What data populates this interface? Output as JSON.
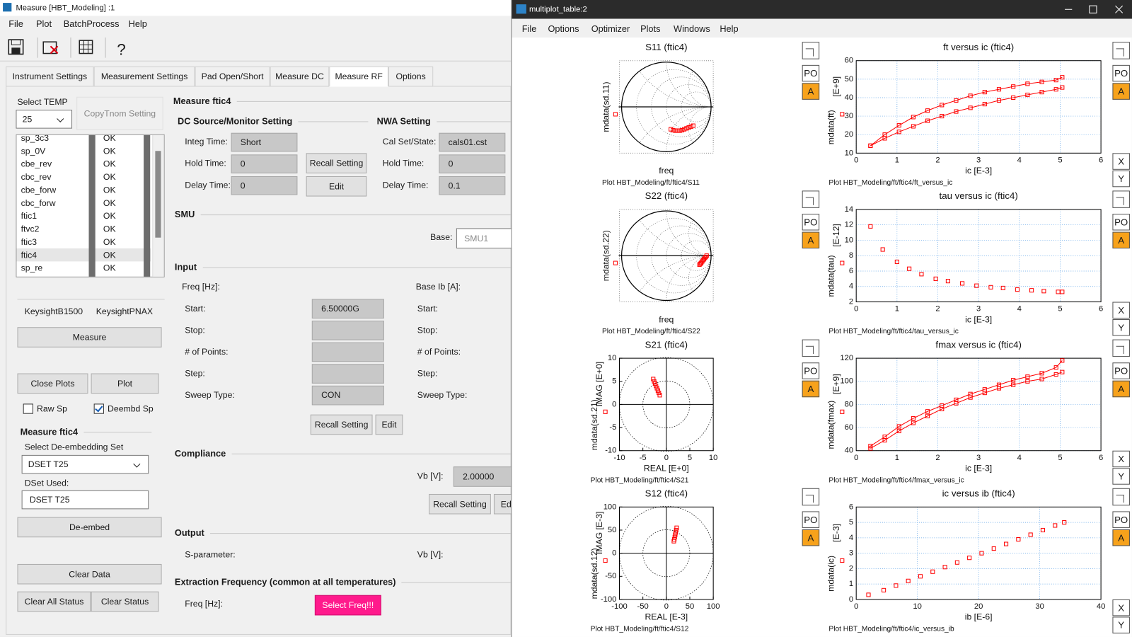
{
  "left_window": {
    "title": "Measure [HBT_Modeling] :1",
    "menu": [
      "File",
      "Plot",
      "BatchProcess",
      "Help"
    ],
    "help_icon": "?",
    "tabs": [
      "Instrument Settings",
      "Measurement Settings",
      "Pad Open/Short",
      "Measure DC",
      "Measure RF",
      "Options"
    ],
    "active_tab": 4,
    "sidebar": {
      "select_temp": "Select TEMP",
      "temp": "25",
      "copy_tnom": "CopyTnom Setting",
      "setups": [
        {
          "name": "sp_3c3",
          "status": "OK"
        },
        {
          "name": "sp_0V",
          "status": "OK"
        },
        {
          "name": "cbe_rev",
          "status": "OK"
        },
        {
          "name": "cbc_rev",
          "status": "OK"
        },
        {
          "name": "cbe_forw",
          "status": "OK"
        },
        {
          "name": "cbc_forw",
          "status": "OK"
        },
        {
          "name": "ftic1",
          "status": "OK"
        },
        {
          "name": "ftvc2",
          "status": "OK"
        },
        {
          "name": "ftic3",
          "status": "OK"
        },
        {
          "name": "ftic4",
          "status": "OK"
        },
        {
          "name": "sp_re",
          "status": "OK"
        }
      ],
      "selected_setup": 9,
      "instruments": [
        "KeysightB1500",
        "KeysightPNAX"
      ],
      "measure": "Measure",
      "close_plots": "Close Plots",
      "plot": "Plot",
      "raw_sp": "Raw Sp",
      "deembd_sp": "Deembd Sp",
      "raw_sp_checked": false,
      "deembd_sp_checked": true,
      "section": "Measure ftic4",
      "select_deembed": "Select De-embedding Set",
      "deembed_set": "DSET T25",
      "dset_used": "DSet Used:",
      "dset_used_value": "DSET T25",
      "deembed": "De-embed",
      "clear_data": "Clear Data",
      "clear_all_status": "Clear All Status",
      "clear_status": "Clear Status"
    },
    "main": {
      "title": "Measure ftic4",
      "dc_header": "DC Source/Monitor Setting",
      "nwa_header": "NWA Setting",
      "integ_time_label": "Integ Time:",
      "integ_time": "Short",
      "hold_time_label": "Hold Time:",
      "hold_time": "0",
      "delay_time_label": "Delay Time:",
      "delay_time": "0",
      "recall": "Recall Setting",
      "edit": "Edit",
      "cal_set_label": "Cal Set/State:",
      "cal_set": "cals01.cst",
      "nwa_hold_label": "Hold Time:",
      "nwa_hold": "0",
      "nwa_delay_label": "Delay Time:",
      "nwa_delay": "0.1",
      "smu": "SMU",
      "base_label": "Base:",
      "base": "SMU1",
      "input": "Input",
      "freq_label": "Freq [Hz]:",
      "base_ib_label": "Base Ib [A]:",
      "sweep_labels": [
        "Start:",
        "Stop:",
        "# of Points:",
        "Step:",
        "Sweep Type:"
      ],
      "start": "6.50000G",
      "sweep_type": "CON",
      "input_recall": "Recall Setting",
      "input_edit": "Edit",
      "compliance": "Compliance",
      "vb_label": "Vb [V]:",
      "vb": "2.00000",
      "compliance_recall": "Recall Setting",
      "compliance_edit": "Edit",
      "output": "Output",
      "sparam_label": "S-parameter:",
      "output_vb_label": "Vb [V]:",
      "extraction": "Extraction Frequency (common at all temperatures)",
      "extraction_freq_label": "Freq [Hz]:",
      "select_freq": "Select Freq!!!"
    }
  },
  "multiplot_window": {
    "title": "multiplot_table:2",
    "menu": [
      "File",
      "Options",
      "Optimizer",
      "Plots",
      "Windows",
      "Help"
    ],
    "side_buttons": {
      "po": "PO",
      "a": "A",
      "x": "X",
      "y": "Y"
    },
    "plots": [
      {
        "type": "smith",
        "title": "S11 (ftic4)",
        "ylabel": "mdata(sd.11)",
        "xlabel": "freq",
        "caption": "Plot HBT_Modeling/ft/ftic4/S11",
        "color": "#ff0000",
        "x": [
          0.1,
          0.15,
          0.2,
          0.25,
          0.3,
          0.35,
          0.4,
          0.45,
          0.5,
          0.55,
          0.6
        ],
        "series": [
          {
            "values": [
              -0.5,
              -0.52,
              -0.53,
              -0.53,
              -0.53,
              -0.52,
              -0.5,
              -0.48,
              -0.46,
              -0.44,
              -0.42
            ]
          }
        ]
      },
      {
        "type": "xy",
        "title": "ft versus ic (ftic4)",
        "ylabel": "mdata(ft)",
        "yunit": "[E+9]",
        "xlabel": "ic  [E-3]",
        "caption": "Plot HBT_Modeling/ft/ftic4/ft_versus_ic",
        "color": "#ff0000",
        "lines": true,
        "grid": true,
        "xlim": [
          0,
          6
        ],
        "xticks": [
          0,
          1,
          2,
          3,
          4,
          5,
          6
        ],
        "ylim": [
          10,
          60
        ],
        "yticks": [
          10,
          20,
          30,
          40,
          50,
          60
        ],
        "x": [
          0.35,
          0.7,
          1.05,
          1.4,
          1.75,
          2.1,
          2.45,
          2.8,
          3.15,
          3.5,
          3.85,
          4.2,
          4.55,
          4.9,
          5.05
        ],
        "series": [
          {
            "values": [
              14,
              20,
              25,
              29.5,
              33,
              36,
              38.5,
              41,
              43,
              44.5,
              46,
              47.5,
              48.5,
              49.5,
              51
            ]
          },
          {
            "values": [
              14,
              18,
              21.5,
              24.5,
              27.5,
              30,
              32.5,
              34.5,
              36.5,
              38.5,
              40,
              41.5,
              43,
              44.5,
              45.5
            ]
          }
        ]
      },
      {
        "type": "smith",
        "title": "S22 (ftic4)",
        "ylabel": "mdata(sd.22)",
        "xlabel": "freq",
        "caption": "Plot HBT_Modeling/ft/ftic4/S22",
        "color": "#ff0000",
        "x": [
          0.74,
          0.76,
          0.78,
          0.8,
          0.82,
          0.84,
          0.86,
          0.88,
          0.9
        ],
        "series": [
          {
            "values": [
              -0.2,
              -0.18,
              -0.16,
              -0.13,
              -0.1,
              -0.08,
              -0.05,
              -0.03,
              0
            ]
          }
        ]
      },
      {
        "type": "xy",
        "title": "tau versus ic (ftic4)",
        "ylabel": "mdata(tau)",
        "yunit": "[E-12]",
        "xlabel": "ic  [E-3]",
        "caption": "Plot HBT_Modeling/ft/ftic4/tau_versus_ic",
        "color": "#ff0000",
        "lines": false,
        "grid": true,
        "xlim": [
          0,
          6
        ],
        "xticks": [
          0,
          1,
          2,
          3,
          4,
          5,
          6
        ],
        "ylim": [
          2,
          14
        ],
        "yticks": [
          2,
          4,
          6,
          8,
          10,
          12,
          14
        ],
        "x": [
          0.35,
          0.65,
          1.0,
          1.3,
          1.6,
          1.95,
          2.25,
          2.6,
          2.95,
          3.3,
          3.6,
          3.95,
          4.3,
          4.6,
          4.95,
          5.05
        ],
        "series": [
          {
            "values": [
              11.8,
              8.8,
              7.2,
              6.3,
              5.6,
              5.0,
              4.7,
              4.4,
              4.1,
              3.9,
              3.8,
              3.6,
              3.5,
              3.4,
              3.3,
              3.3
            ]
          }
        ]
      },
      {
        "type": "polar",
        "title": "S21 (ftic4)",
        "ylabel": "mdata(sd.21)",
        "yunit": "IMAG [E+0]",
        "xlabel": "REAL [E+0]",
        "caption": "Plot HBT_Modeling/ft/ftic4/S21",
        "color": "#ff0000",
        "xlim": [
          -10,
          10
        ],
        "xticks": [
          -10,
          -5,
          0,
          5,
          10
        ],
        "ylim": [
          -10,
          10
        ],
        "yticks": [
          -10,
          -5,
          0,
          5,
          10
        ],
        "x": [
          -2.8,
          -2.6,
          -2.4,
          -2.2,
          -2.0,
          -1.8,
          -1.6,
          -1.4
        ],
        "series": [
          {
            "values": [
              5.5,
              5.0,
              4.5,
              4.0,
              3.5,
              3.0,
              2.5,
              2.0
            ]
          }
        ]
      },
      {
        "type": "xy",
        "title": "fmax versus ic (ftic4)",
        "ylabel": "mdata(fmax)",
        "yunit": "[E+9]",
        "xlabel": "ic  [E-3]",
        "caption": "Plot HBT_Modeling/ft/ftic4/fmax_versus_ic",
        "color": "#ff0000",
        "lines": true,
        "grid": true,
        "xlim": [
          0,
          6
        ],
        "xticks": [
          0,
          1,
          2,
          3,
          4,
          5,
          6
        ],
        "ylim": [
          40,
          120
        ],
        "yticks": [
          40,
          60,
          80,
          100,
          120
        ],
        "x": [
          0.35,
          0.7,
          1.05,
          1.4,
          1.75,
          2.1,
          2.45,
          2.8,
          3.15,
          3.5,
          3.85,
          4.2,
          4.55,
          4.9,
          5.05
        ],
        "series": [
          {
            "values": [
              44,
              52,
              61,
              68,
              74,
              79,
              84,
              89,
              93,
              97,
              101,
              104,
              107,
              112,
              118
            ]
          },
          {
            "values": [
              42,
              49,
              57,
              64,
              70,
              76,
              81,
              86,
              90,
              94,
              97,
              100,
              102,
              106,
              108
            ]
          }
        ]
      },
      {
        "type": "polar",
        "title": "S12 (ftic4)",
        "ylabel": "mdata(sd.12)",
        "yunit": "IMAG [E-3]",
        "xlabel": "REAL [E-3]",
        "caption": "Plot HBT_Modeling/ft/ftic4/S12",
        "color": "#ff0000",
        "xlim": [
          -100,
          100
        ],
        "xticks": [
          -100,
          -50,
          0,
          50,
          100
        ],
        "ylim": [
          -100,
          100
        ],
        "yticks": [
          -100,
          -50,
          0,
          50,
          100
        ],
        "x": [
          22,
          21,
          20,
          19,
          18,
          17,
          16
        ],
        "series": [
          {
            "values": [
              55,
              50,
              45,
              40,
              35,
              30,
              26
            ]
          }
        ]
      },
      {
        "type": "xy",
        "title": "ic versus ib (ftic4)",
        "ylabel": "mdata(ic)",
        "yunit": "[E-3]",
        "xlabel": "ib  [E-6]",
        "caption": "Plot HBT_Modeling/ft/ftic4/ic_versus_ib",
        "color": "#ff0000",
        "lines": false,
        "grid": true,
        "xlim": [
          0,
          40
        ],
        "xticks": [
          0,
          10,
          20,
          30,
          40
        ],
        "ylim": [
          0,
          6
        ],
        "yticks": [
          0,
          1,
          2,
          3,
          4,
          5,
          6
        ],
        "x": [
          2,
          4.5,
          6.5,
          8.5,
          10.5,
          12.5,
          14.5,
          16.5,
          18.5,
          20.5,
          22.5,
          24.5,
          26.5,
          28.5,
          30.5,
          32.5,
          34
        ],
        "series": [
          {
            "values": [
              0.3,
              0.6,
              0.9,
              1.2,
              1.5,
              1.8,
              2.1,
              2.4,
              2.7,
              3.0,
              3.3,
              3.6,
              3.9,
              4.2,
              4.5,
              4.8,
              5.0
            ]
          }
        ]
      }
    ]
  }
}
